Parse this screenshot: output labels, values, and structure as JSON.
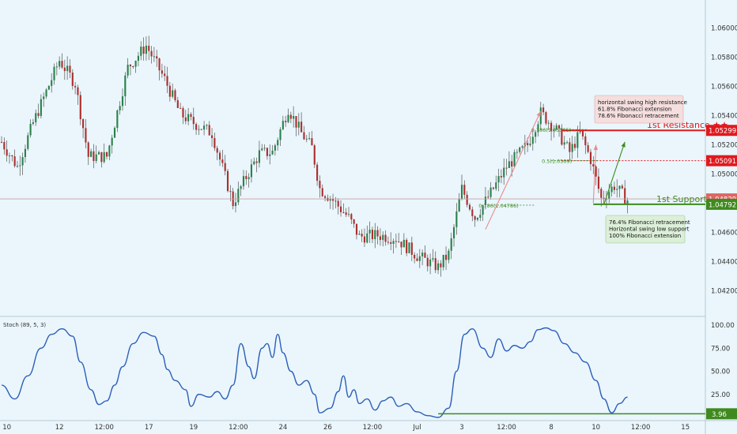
{
  "colors": {
    "background": "#eaf6fc",
    "bullish": "#29824a",
    "bearish": "#ad2d2d",
    "stoch_line": "#2e5fb8",
    "resistance": "#e0191e",
    "support": "#3f8a1e",
    "price_tag": "#e0191e",
    "current_price_tag": "#e06666",
    "grid": "#d6e6ee",
    "axis_text": "#333333",
    "annotation_red_bg": "#f5dede",
    "annotation_green_bg": "#dcefd8"
  },
  "chart_data": [
    {
      "type": "candlestick",
      "title": "",
      "ylim": [
        1.0405,
        1.0615
      ],
      "y_ticks": [
        "1.06000",
        "1.05800",
        "1.05600",
        "1.05400",
        "1.05200",
        "1.05000",
        "1.04800",
        "1.04600",
        "1.04400",
        "1.04200"
      ],
      "y_tick_values": [
        1.06,
        1.058,
        1.056,
        1.054,
        1.052,
        1.05,
        1.048,
        1.046,
        1.044,
        1.042
      ],
      "x_ticks": [
        "10",
        "12",
        "12:00",
        "17",
        "19",
        "12:00",
        "24",
        "26",
        "12:00",
        "Jul",
        "3",
        "12:00",
        "8",
        "10",
        "12:00",
        "15"
      ],
      "x_tick_bars": [
        2,
        22,
        39,
        56,
        73,
        90,
        107,
        124,
        141,
        158,
        175,
        192,
        209,
        226,
        243,
        260
      ],
      "bar_count": 264,
      "price_path": [
        [
          0,
          1.0522
        ],
        [
          6,
          1.0505
        ],
        [
          12,
          1.0535
        ],
        [
          22,
          1.0578
        ],
        [
          28,
          1.0562
        ],
        [
          33,
          1.0512
        ],
        [
          40,
          1.0512
        ],
        [
          48,
          1.0573
        ],
        [
          55,
          1.0588
        ],
        [
          62,
          1.0565
        ],
        [
          68,
          1.0541
        ],
        [
          73,
          1.0535
        ],
        [
          80,
          1.0528
        ],
        [
          88,
          1.048
        ],
        [
          93,
          1.0498
        ],
        [
          98,
          1.0514
        ],
        [
          103,
          1.0515
        ],
        [
          109,
          1.0545
        ],
        [
          114,
          1.0528
        ],
        [
          118,
          1.0518
        ],
        [
          121,
          1.049
        ],
        [
          126,
          1.0482
        ],
        [
          132,
          1.047
        ],
        [
          136,
          1.0457
        ],
        [
          143,
          1.0458
        ],
        [
          150,
          1.0456
        ],
        [
          158,
          1.0444
        ],
        [
          166,
          1.0436
        ],
        [
          170,
          1.0445
        ],
        [
          175,
          1.049
        ],
        [
          180,
          1.047
        ],
        [
          186,
          1.0487
        ],
        [
          192,
          1.0505
        ],
        [
          200,
          1.052
        ],
        [
          205,
          1.0542
        ],
        [
          211,
          1.053
        ],
        [
          216,
          1.0515
        ],
        [
          220,
          1.0528
        ],
        [
          224,
          1.051
        ],
        [
          228,
          1.0483
        ],
        [
          233,
          1.0492
        ],
        [
          238,
          1.0482
        ]
      ],
      "current_price": "1.04829",
      "current_price_value": 1.04829,
      "levels": [
        {
          "name": "1st Resistance ★★",
          "value": 1.05299,
          "label": "1.05299",
          "start_bar": 213,
          "role": "resistance"
        },
        {
          "name": "1st Support ★★",
          "value": 1.04792,
          "label": "1.04792",
          "start_bar": 225,
          "role": "support"
        },
        {
          "name": "",
          "value": 1.05091,
          "label": "1.05091",
          "start_bar": 213,
          "role": "dotted"
        }
      ],
      "fib_labels": [
        {
          "text": "0.786(1.05305)",
          "value": 1.05305,
          "bar": 205
        },
        {
          "text": "0.5(1.0509)",
          "value": 1.05091,
          "bar": 209
        },
        {
          "text": "0.786(1.04786)",
          "value": 1.04786,
          "bar": 185
        }
      ],
      "annotations": {
        "resistance": [
          "horizontal swing high resistance",
          "61.8% Fibonacci extension",
          "78.6% Fibonacci retracement"
        ],
        "support": [
          "76.4% Fibonacci retracement",
          "Horizontal swing low support",
          "100% Fibonacci extension"
        ]
      }
    },
    {
      "type": "line",
      "title": "Stoch (89, 5, 3)",
      "ylim": [
        0,
        100
      ],
      "y_ticks": [
        "100.00",
        "75.00",
        "50.00",
        "25.00"
      ],
      "y_tick_values": [
        100,
        75,
        50,
        25
      ],
      "series": [
        {
          "values": [
            [
              0,
              35
            ],
            [
              5,
              20
            ],
            [
              10,
              45
            ],
            [
              15,
              75
            ],
            [
              19,
              90
            ],
            [
              23,
              96
            ],
            [
              27,
              88
            ],
            [
              30,
              60
            ],
            [
              34,
              30
            ],
            [
              37,
              14
            ],
            [
              40,
              18
            ],
            [
              43,
              35
            ],
            [
              46,
              55
            ],
            [
              50,
              80
            ],
            [
              54,
              92
            ],
            [
              58,
              88
            ],
            [
              61,
              68
            ],
            [
              63,
              52
            ],
            [
              66,
              40
            ],
            [
              70,
              30
            ],
            [
              72,
              12
            ],
            [
              75,
              25
            ],
            [
              79,
              22
            ],
            [
              82,
              28
            ],
            [
              85,
              20
            ],
            [
              88,
              35
            ],
            [
              91,
              80
            ],
            [
              94,
              55
            ],
            [
              96,
              42
            ],
            [
              99,
              75
            ],
            [
              101,
              80
            ],
            [
              103,
              65
            ],
            [
              105,
              90
            ],
            [
              107,
              70
            ],
            [
              110,
              50
            ],
            [
              113,
              35
            ],
            [
              116,
              40
            ],
            [
              119,
              25
            ],
            [
              121,
              5
            ],
            [
              125,
              10
            ],
            [
              128,
              28
            ],
            [
              130,
              45
            ],
            [
              132,
              22
            ],
            [
              134,
              30
            ],
            [
              136,
              15
            ],
            [
              139,
              20
            ],
            [
              142,
              8
            ],
            [
              145,
              18
            ],
            [
              148,
              22
            ],
            [
              151,
              12
            ],
            [
              154,
              15
            ],
            [
              158,
              6
            ],
            [
              162,
              2
            ],
            [
              166,
              0
            ],
            [
              170,
              10
            ],
            [
              173,
              50
            ],
            [
              176,
              90
            ],
            [
              179,
              96
            ],
            [
              183,
              75
            ],
            [
              186,
              65
            ],
            [
              189,
              85
            ],
            [
              192,
              72
            ],
            [
              195,
              78
            ],
            [
              198,
              75
            ],
            [
              201,
              82
            ],
            [
              204,
              95
            ],
            [
              207,
              97
            ],
            [
              210,
              94
            ],
            [
              214,
              80
            ],
            [
              218,
              70
            ],
            [
              222,
              60
            ],
            [
              226,
              40
            ],
            [
              229,
              20
            ],
            [
              232,
              5
            ],
            [
              235,
              15
            ],
            [
              238,
              22
            ]
          ]
        }
      ],
      "marker_value": "3.96",
      "marker_level": 3.96,
      "marker_start_bar": 166
    }
  ]
}
